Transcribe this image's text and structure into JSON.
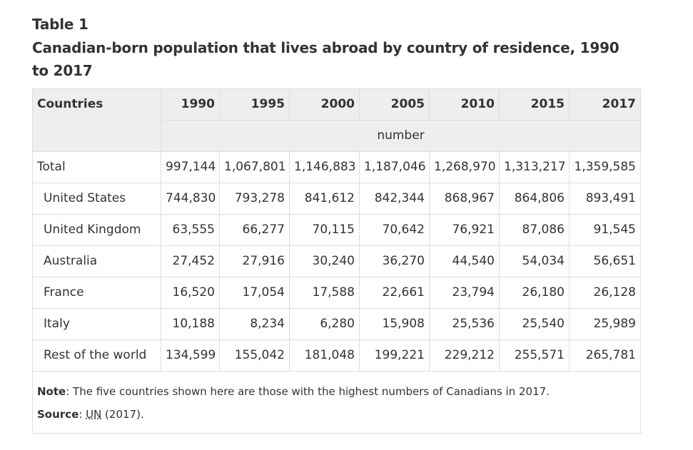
{
  "caption": {
    "table_number": "Table 1",
    "title": "Canadian-born population that lives abroad by country of residence, 1990 to 2017"
  },
  "header": {
    "corner": "Countries",
    "years": [
      "1990",
      "1995",
      "2000",
      "2005",
      "2010",
      "2015",
      "2017"
    ],
    "unit": "number"
  },
  "rows": [
    {
      "label": "Total",
      "values": [
        "997,144",
        "1,067,801",
        "1,146,883",
        "1,187,046",
        "1,268,970",
        "1,313,217",
        "1,359,585"
      ]
    },
    {
      "label": "United States",
      "values": [
        "744,830",
        "793,278",
        "841,612",
        "842,344",
        "868,967",
        "864,806",
        "893,491"
      ]
    },
    {
      "label": "United Kingdom",
      "values": [
        "63,555",
        "66,277",
        "70,115",
        "70,642",
        "76,921",
        "87,086",
        "91,545"
      ]
    },
    {
      "label": "Australia",
      "values": [
        "27,452",
        "27,916",
        "30,240",
        "36,270",
        "44,540",
        "54,034",
        "56,651"
      ]
    },
    {
      "label": "France",
      "values": [
        "16,520",
        "17,054",
        "17,588",
        "22,661",
        "23,794",
        "26,180",
        "26,128"
      ]
    },
    {
      "label": "Italy",
      "values": [
        "10,188",
        "8,234",
        "6,280",
        "15,908",
        "25,536",
        "25,540",
        "25,989"
      ]
    },
    {
      "label": "Rest of the world",
      "values": [
        "134,599",
        "155,042",
        "181,048",
        "199,221",
        "229,212",
        "255,571",
        "265,781"
      ]
    }
  ],
  "footer": {
    "note_label": "Note",
    "note_text": ": The five countries shown here are those with the highest numbers of Canadians in 2017.",
    "source_label": "Source",
    "source_sep": ": ",
    "source_abbr": "UN",
    "source_rest": " (2017)."
  }
}
